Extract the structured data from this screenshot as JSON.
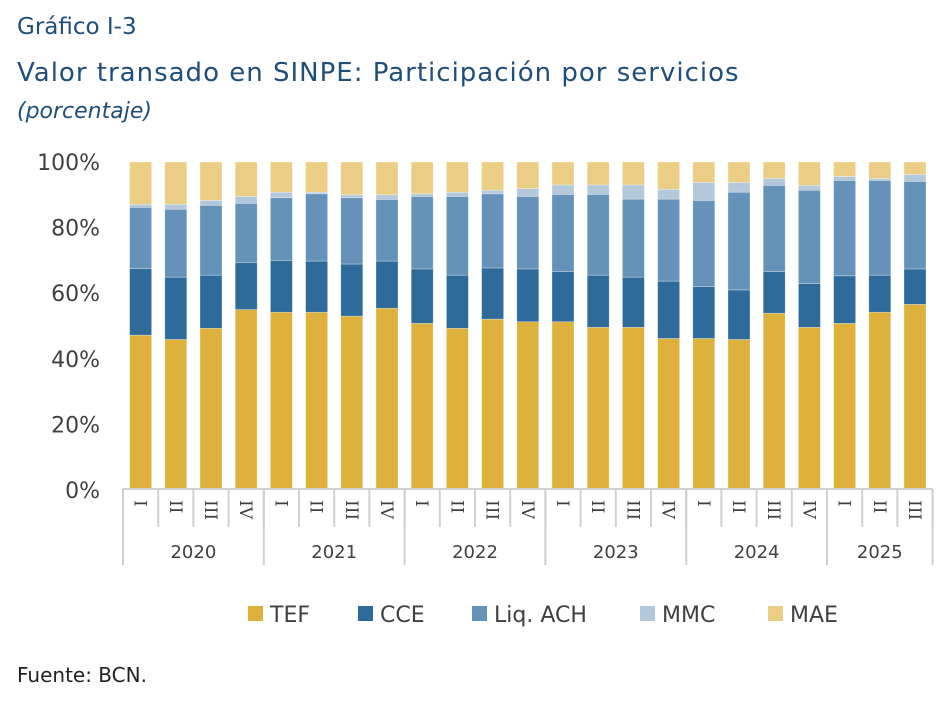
{
  "header": {
    "label": "Gráfico I-3",
    "title": "Valor transado en SINPE: Participación por servicios",
    "subtitle": "(porcentaje)"
  },
  "footer": {
    "source": "Fuente: BCN."
  },
  "chart_data": {
    "type": "bar",
    "stacked": true,
    "title": "Valor transado en SINPE: Participación por servicios",
    "subtitle": "(porcentaje)",
    "ylim": [
      0,
      100
    ],
    "yticks": [
      "0%",
      "20%",
      "40%",
      "60%",
      "80%",
      "100%"
    ],
    "grid": false,
    "legend_position": "bottom",
    "categories": [
      "I",
      "II",
      "III",
      "IV",
      "I",
      "II",
      "III",
      "IV",
      "I",
      "II",
      "III",
      "IV",
      "I",
      "II",
      "III",
      "IV",
      "I",
      "II",
      "III",
      "IV",
      "I",
      "II",
      "III"
    ],
    "groups": [
      {
        "label": "2020",
        "count": 4
      },
      {
        "label": "2021",
        "count": 4
      },
      {
        "label": "2022",
        "count": 4
      },
      {
        "label": "2023",
        "count": 4
      },
      {
        "label": "2024",
        "count": 4
      },
      {
        "label": "2025",
        "count": 3
      }
    ],
    "series": [
      {
        "name": "TEF",
        "color": "#DDB13B",
        "values": [
          47.2,
          45.9,
          49.3,
          55.0,
          54.2,
          54.2,
          53.0,
          55.4,
          50.8,
          49.3,
          52.1,
          51.3,
          51.3,
          49.6,
          49.6,
          46.2,
          46.2,
          45.9,
          53.9,
          49.6,
          50.8,
          54.2,
          56.6
        ]
      },
      {
        "name": "CCE",
        "color": "#2F6B9A",
        "values": [
          20.3,
          19.0,
          16.2,
          14.4,
          15.8,
          15.6,
          15.9,
          14.4,
          16.6,
          16.2,
          15.6,
          16.1,
          15.3,
          15.9,
          15.3,
          17.5,
          15.8,
          15.1,
          12.7,
          13.3,
          14.5,
          11.3,
          10.8
        ]
      },
      {
        "name": "Liq. ACH",
        "color": "#6592B8",
        "values": [
          18.7,
          20.7,
          21.3,
          18.0,
          19.1,
          20.5,
          20.2,
          18.8,
          22.1,
          24.0,
          22.6,
          22.1,
          23.5,
          24.6,
          23.8,
          25.0,
          26.3,
          29.8,
          26.3,
          28.5,
          29.1,
          28.9,
          26.7
        ]
      },
      {
        "name": "MMC",
        "color": "#B4C8DB",
        "values": [
          0.9,
          1.5,
          1.5,
          2.1,
          1.7,
          0.5,
          0.9,
          1.4,
          0.8,
          1.3,
          1.1,
          2.4,
          2.9,
          2.9,
          4.3,
          3.0,
          5.5,
          3.0,
          2.1,
          1.5,
          1.2,
          0.6,
          2.1
        ]
      },
      {
        "name": "MAE",
        "color": "#EBCE84",
        "values": [
          12.9,
          12.9,
          11.7,
          10.5,
          9.2,
          9.2,
          10.0,
          10.0,
          9.7,
          9.2,
          8.6,
          8.1,
          7.0,
          7.0,
          7.0,
          8.3,
          6.2,
          6.2,
          5.0,
          7.1,
          4.4,
          5.0,
          3.8
        ]
      }
    ]
  }
}
